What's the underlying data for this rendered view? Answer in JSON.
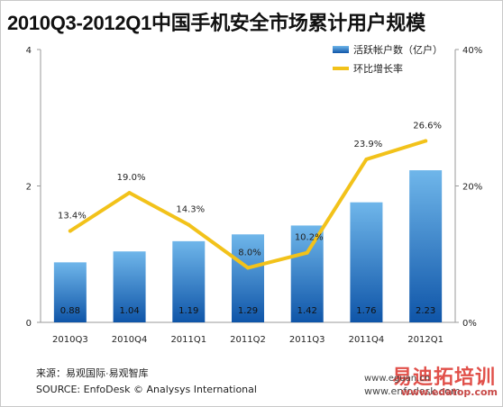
{
  "chart_data": {
    "type": "bar",
    "title": "2010Q3-2012Q1中国手机安全市场累计用户规模",
    "categories": [
      "2010Q3",
      "2010Q4",
      "2011Q1",
      "2011Q2",
      "2011Q3",
      "2011Q4",
      "2012Q1"
    ],
    "series": [
      {
        "name": "活跃帐户数（亿户）",
        "type": "bar",
        "axis": "left",
        "values": [
          0.88,
          1.04,
          1.19,
          1.29,
          1.42,
          1.76,
          2.23
        ],
        "labels": [
          "0.88",
          "1.04",
          "1.19",
          "1.29",
          "1.42",
          "1.76",
          "2.23"
        ]
      },
      {
        "name": "环比增长率",
        "type": "line",
        "axis": "right",
        "values": [
          13.4,
          19.0,
          14.3,
          8.0,
          10.2,
          23.9,
          26.6
        ],
        "labels": [
          "13.4%",
          "19.0%",
          "14.3%",
          "8.0%",
          "10.2%",
          "23.9%",
          "26.6%"
        ]
      }
    ],
    "y_left": {
      "ticks": [
        "0",
        "2",
        "4"
      ],
      "range": [
        0,
        4
      ]
    },
    "y_right": {
      "ticks": [
        "0%",
        "20%",
        "40%"
      ],
      "range": [
        0,
        40
      ]
    },
    "legend_position": "top-right",
    "colors": {
      "bar_top": "#6fb6ea",
      "bar_bottom": "#0f55a8",
      "line": "#f2c21a"
    }
  },
  "footer": {
    "source_cn": "来源：易观国际·易观智库",
    "source_en": "SOURCE: EnfoDesk © Analysys International"
  },
  "watermark": {
    "brand": "易迪拓培训",
    "url_eguan": "www.eguan.cn",
    "url_enfodesk": "www.enfodesk.com",
    "url_edatop": "www.edatop.com"
  }
}
